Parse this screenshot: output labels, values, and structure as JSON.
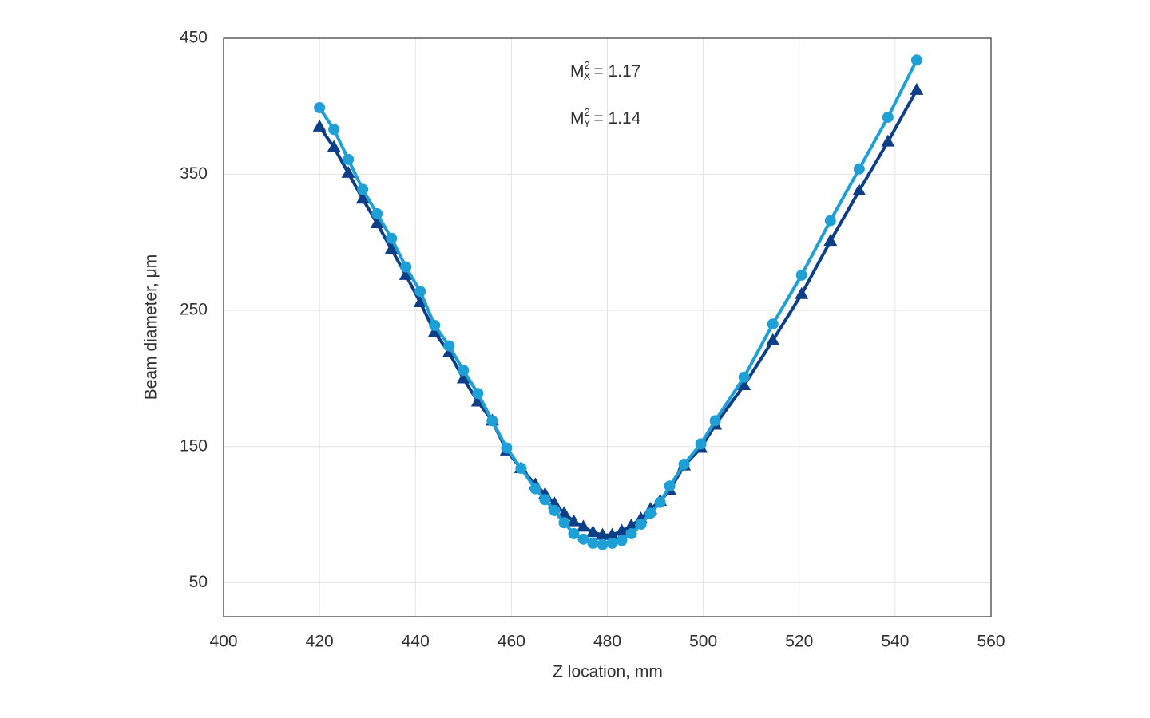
{
  "chart_data": {
    "type": "line",
    "x_label": "Z location, mm",
    "y_label": "Beam diameter, μm",
    "annotations": [
      {
        "base": "M",
        "sup": "2",
        "sub": "X",
        "text": "= 1.17"
      },
      {
        "base": "M",
        "sup": "2",
        "sub": "Y",
        "text": "= 1.14"
      }
    ],
    "x": [
      420,
      423,
      426,
      429,
      432,
      435,
      438,
      441,
      444,
      447,
      450,
      453,
      456,
      459,
      462,
      465,
      467,
      469,
      471,
      473,
      475,
      477,
      479,
      481,
      483,
      485,
      487,
      489,
      491,
      493,
      496,
      499.5,
      502.5,
      508.5,
      514.5,
      520.5,
      526.5,
      532.5,
      538.5,
      544.5
    ],
    "series": [
      {
        "color": "#0d3f87",
        "marker": "triangle",
        "values": [
          385,
          370,
          351,
          332,
          314,
          295,
          276,
          256,
          234,
          219,
          200,
          183,
          169,
          147,
          134,
          122,
          115,
          108,
          101,
          95,
          91,
          87,
          85,
          85,
          88,
          92,
          97,
          104,
          110,
          118,
          136,
          149,
          166,
          195,
          228,
          262,
          301,
          338,
          374,
          412
        ]
      },
      {
        "color": "#1e9fd6",
        "marker": "circle",
        "values": [
          399,
          383,
          361,
          339,
          321,
          303,
          282,
          264,
          239,
          224,
          206,
          189,
          169,
          149,
          134,
          119,
          111,
          103,
          94,
          86,
          82,
          79,
          78,
          79,
          81,
          86,
          93,
          101,
          109,
          121,
          137,
          152,
          169,
          201,
          240,
          276,
          316,
          354,
          392,
          434
        ]
      }
    ],
    "xlim": [
      400,
      560
    ],
    "xticks": [
      400,
      420,
      440,
      460,
      480,
      500,
      520,
      540,
      560
    ],
    "ylim": [
      25,
      450
    ],
    "yticks": [
      50,
      150,
      250,
      350,
      450
    ],
    "grid": true
  }
}
